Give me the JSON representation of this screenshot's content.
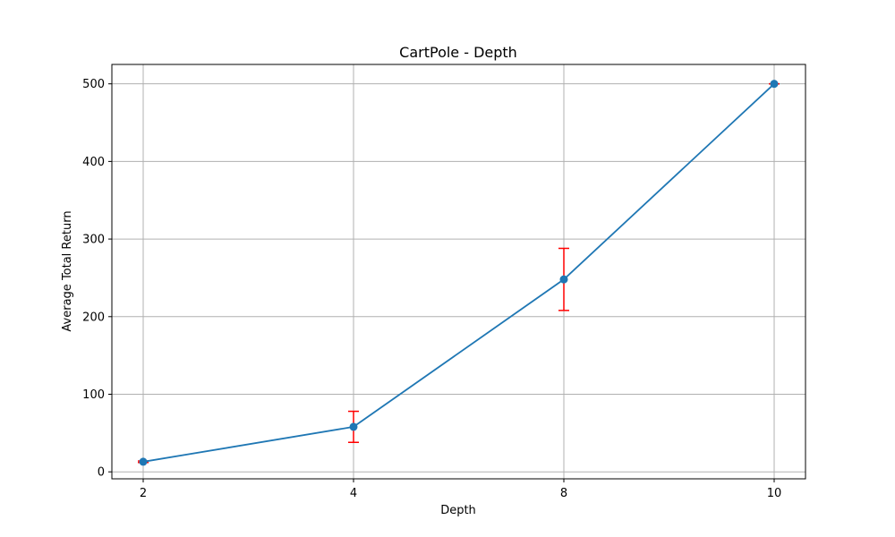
{
  "chart_data": {
    "type": "line",
    "title": "CartPole - Depth",
    "xlabel": "Depth",
    "ylabel": "Average Total Return",
    "categories": [
      "2",
      "4",
      "8",
      "10"
    ],
    "series": [
      {
        "values": [
          13,
          58,
          248,
          500
        ],
        "error": [
          1,
          20,
          40,
          0
        ]
      }
    ],
    "ylim": [
      -9,
      525
    ],
    "yticks": [
      0,
      100,
      200,
      300,
      400,
      500
    ],
    "grid": true,
    "colors": {
      "line": "#1f77b4",
      "error": "#ff0000",
      "grid": "#b0b0b0"
    }
  }
}
